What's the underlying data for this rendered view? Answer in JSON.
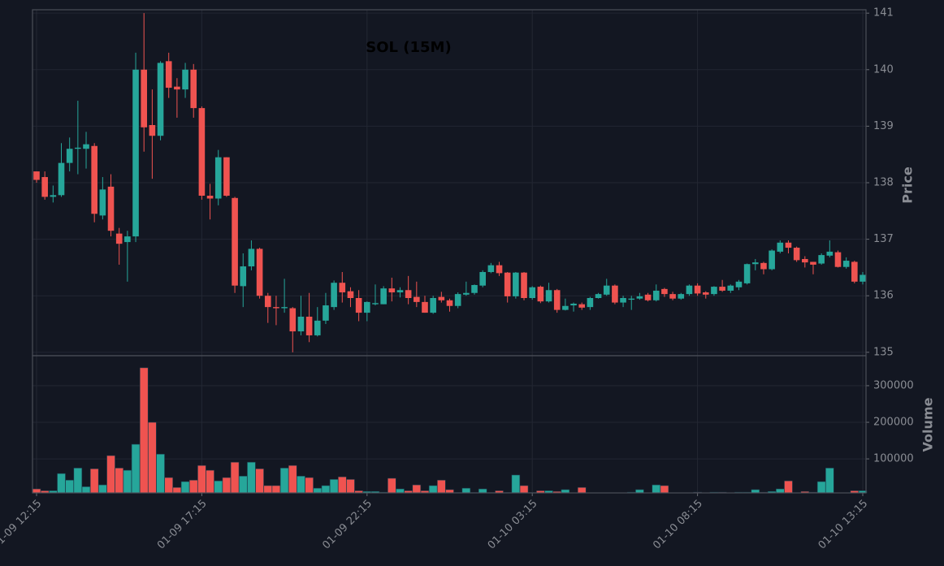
{
  "chart_data": {
    "type": "candlestick",
    "title": "SOL (15M)",
    "ylabel": "Price",
    "volume_ylabel": "Volume",
    "up_color": "#26a69a",
    "down_color": "#ef5350",
    "grid": true,
    "categories": [
      "01-09 12:15",
      null,
      null,
      null,
      null,
      null,
      null,
      null,
      null,
      null,
      null,
      null,
      null,
      null,
      null,
      null,
      null,
      null,
      null,
      null,
      "01-09 17:15",
      null,
      null,
      null,
      null,
      null,
      null,
      null,
      null,
      null,
      null,
      null,
      null,
      null,
      null,
      null,
      null,
      null,
      null,
      null,
      "01-09 22:15",
      null,
      null,
      null,
      null,
      null,
      null,
      null,
      null,
      null,
      null,
      null,
      null,
      null,
      null,
      null,
      null,
      null,
      null,
      null,
      "01-10 03:15",
      null,
      null,
      null,
      null,
      null,
      null,
      null,
      null,
      null,
      null,
      null,
      null,
      null,
      null,
      null,
      null,
      null,
      null,
      null,
      "01-10 08:15",
      null,
      null,
      null,
      null,
      null,
      null,
      null,
      null,
      null,
      null,
      null,
      null,
      null,
      null,
      null,
      null,
      null,
      null,
      null,
      "01-10 13:15"
    ],
    "open": [
      138.2,
      138.1,
      137.75,
      137.78,
      138.35,
      138.6,
      138.6,
      138.65,
      137.42,
      137.93,
      137.1,
      136.95,
      137.05,
      140.0,
      139.02,
      138.83,
      140.15,
      139.7,
      139.65,
      140.0,
      139.32,
      137.77,
      137.72,
      138.45,
      137.73,
      136.17,
      136.52,
      136.83,
      136.0,
      135.8,
      135.78,
      135.78,
      135.37,
      135.63,
      135.3,
      135.56,
      135.8,
      136.23,
      136.08,
      135.96,
      135.7,
      135.85,
      135.85,
      136.13,
      136.06,
      136.1,
      135.98,
      135.89,
      135.7,
      135.98,
      135.92,
      135.82,
      136.02,
      136.05,
      136.18,
      136.42,
      136.54,
      136.41,
      135.99,
      136.41,
      135.96,
      136.16,
      135.9,
      136.1,
      135.75,
      135.83,
      135.85,
      135.8,
      135.96,
      136.02,
      136.18,
      135.88,
      135.93,
      135.95,
      136.02,
      135.92,
      136.12,
      136.03,
      135.95,
      136.03,
      136.18,
      136.06,
      136.03,
      136.16,
      136.09,
      136.15,
      136.22,
      136.56,
      136.58,
      136.47,
      136.78,
      136.94,
      136.85,
      136.65,
      136.6,
      136.57,
      136.71,
      136.77,
      136.51,
      136.6,
      136.25
    ],
    "high": [
      138.2,
      138.2,
      137.95,
      138.7,
      138.8,
      139.45,
      138.9,
      138.7,
      138.1,
      138.15,
      137.2,
      137.15,
      140.3,
      141.0,
      139.65,
      140.15,
      140.3,
      139.85,
      140.12,
      140.1,
      139.35,
      137.98,
      138.58,
      138.45,
      137.75,
      136.75,
      136.98,
      136.85,
      136.05,
      136.0,
      136.3,
      135.8,
      136.0,
      136.05,
      135.8,
      136.05,
      136.27,
      136.42,
      136.15,
      136.1,
      135.9,
      136.2,
      136.17,
      136.32,
      136.15,
      136.35,
      136.25,
      136.0,
      136.0,
      136.07,
      135.95,
      136.06,
      136.25,
      136.2,
      136.45,
      136.58,
      136.6,
      136.42,
      136.42,
      136.42,
      136.17,
      136.18,
      136.23,
      136.12,
      135.95,
      135.88,
      135.88,
      135.98,
      136.05,
      136.3,
      136.2,
      136.0,
      136.0,
      136.05,
      136.05,
      136.2,
      136.14,
      136.07,
      136.05,
      136.2,
      136.22,
      136.08,
      136.17,
      136.28,
      136.2,
      136.28,
      136.57,
      136.65,
      136.6,
      136.82,
      136.98,
      136.98,
      136.87,
      136.7,
      136.6,
      136.75,
      136.98,
      136.8,
      136.68,
      136.62,
      136.42
    ],
    "low": [
      138.0,
      137.7,
      137.65,
      137.75,
      138.2,
      138.15,
      138.25,
      137.3,
      137.35,
      137.05,
      136.55,
      136.25,
      136.95,
      138.55,
      138.07,
      138.75,
      139.5,
      139.15,
      139.5,
      139.15,
      137.7,
      137.35,
      137.6,
      137.75,
      136.05,
      135.8,
      136.45,
      135.95,
      135.52,
      135.48,
      135.7,
      135.0,
      135.3,
      135.18,
      135.28,
      135.5,
      135.75,
      135.88,
      135.8,
      135.55,
      135.55,
      135.83,
      135.85,
      135.9,
      135.97,
      135.85,
      135.8,
      135.7,
      135.68,
      135.88,
      135.72,
      135.78,
      136.0,
      136.02,
      136.15,
      136.4,
      136.35,
      135.88,
      135.95,
      135.92,
      135.93,
      135.87,
      135.88,
      135.7,
      135.74,
      135.72,
      135.75,
      135.75,
      135.95,
      136.0,
      135.85,
      135.8,
      135.75,
      135.93,
      135.9,
      135.9,
      135.98,
      135.92,
      135.93,
      136.0,
      136.0,
      135.95,
      136.0,
      136.07,
      136.05,
      136.1,
      136.2,
      136.45,
      136.38,
      136.45,
      136.75,
      136.75,
      136.6,
      136.5,
      136.38,
      136.55,
      136.68,
      136.5,
      136.48,
      136.22,
      136.2
    ],
    "close": [
      138.05,
      137.75,
      137.78,
      138.35,
      138.6,
      138.62,
      138.68,
      137.45,
      137.88,
      137.15,
      136.92,
      137.05,
      140.0,
      138.98,
      138.83,
      140.12,
      139.68,
      139.65,
      140.0,
      139.32,
      137.77,
      137.72,
      138.45,
      137.77,
      136.18,
      136.52,
      136.83,
      136.0,
      135.8,
      135.78,
      135.8,
      135.37,
      135.63,
      135.3,
      135.56,
      135.83,
      136.23,
      136.06,
      135.96,
      135.7,
      135.89,
      135.87,
      136.13,
      136.06,
      136.1,
      135.96,
      135.89,
      135.7,
      135.96,
      135.92,
      135.82,
      136.03,
      136.05,
      136.19,
      136.42,
      136.54,
      136.4,
      135.99,
      136.41,
      135.96,
      136.15,
      135.9,
      136.1,
      135.75,
      135.82,
      135.86,
      135.79,
      135.96,
      136.03,
      136.18,
      135.88,
      135.96,
      135.95,
      135.99,
      135.92,
      136.09,
      136.03,
      135.95,
      136.03,
      136.18,
      136.04,
      136.02,
      136.16,
      136.09,
      136.18,
      136.25,
      136.56,
      136.59,
      136.47,
      136.8,
      136.94,
      136.85,
      136.63,
      136.59,
      136.55,
      136.72,
      136.78,
      136.51,
      136.62,
      136.25,
      136.37
    ],
    "volume": [
      18000,
      13000,
      13000,
      60000,
      42000,
      75000,
      24000,
      73000,
      29000,
      109000,
      75000,
      69000,
      140000,
      349000,
      200000,
      113000,
      49000,
      22000,
      38000,
      42000,
      82000,
      69000,
      40000,
      49000,
      91000,
      53000,
      91000,
      73000,
      27000,
      27000,
      75000,
      82000,
      53000,
      49000,
      20000,
      27000,
      44000,
      51000,
      44000,
      13000,
      11000,
      11000,
      9000,
      47000,
      18000,
      13000,
      29000,
      13000,
      27000,
      42000,
      16000,
      8000,
      20000,
      8000,
      18000,
      8000,
      13000,
      8000,
      56000,
      27000,
      8000,
      13000,
      13000,
      11000,
      16000,
      7000,
      22000,
      7000,
      7000,
      7000,
      7000,
      7000,
      9000,
      16000,
      7000,
      29000,
      27000,
      7000,
      7000,
      7000,
      9000,
      7000,
      9000,
      9000,
      7000,
      9000,
      9000,
      16000,
      9000,
      11000,
      18000,
      40000,
      7000,
      11000,
      9000,
      38000,
      75000,
      7000,
      7000,
      13000,
      13000
    ],
    "ylim": [
      134.94,
      141.06
    ],
    "yticks": [
      135,
      136,
      137,
      138,
      139,
      140,
      141
    ],
    "volume_ylim": [
      7000,
      382000
    ],
    "volume_yticks": [
      100000,
      200000,
      300000
    ]
  }
}
